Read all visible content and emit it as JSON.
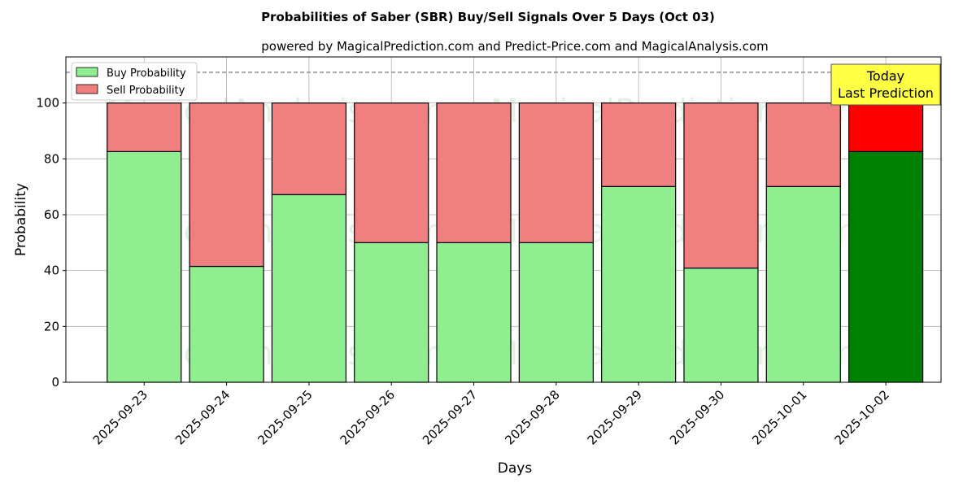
{
  "chart_data": {
    "type": "bar",
    "stacked": true,
    "title": "Probabilities of Saber (SBR) Buy/Sell Signals Over 5 Days (Oct 03)",
    "subtitle": "powered by MagicalPrediction.com and Predict-Price.com and MagicalAnalysis.com",
    "xlabel": "Days",
    "ylabel": "Probability",
    "ylim": [
      0,
      116.5
    ],
    "yticks": [
      0,
      20,
      40,
      60,
      80,
      100
    ],
    "categories": [
      "2025-09-23",
      "2025-09-24",
      "2025-09-25",
      "2025-09-26",
      "2025-09-27",
      "2025-09-28",
      "2025-09-29",
      "2025-09-30",
      "2025-10-01",
      "2025-10-02"
    ],
    "series": [
      {
        "name": "Buy Probability",
        "values": [
          82.6,
          41.5,
          67.2,
          50,
          50,
          50,
          70.1,
          40.9,
          70.1,
          82.6
        ],
        "color": "#90ee90",
        "highlight_color": "#008000"
      },
      {
        "name": "Sell Probability",
        "values": [
          17.4,
          58.5,
          32.8,
          50,
          50,
          50,
          29.9,
          59.1,
          29.9,
          17.4
        ],
        "color": "#f08080",
        "highlight_color": "#ff0000"
      }
    ],
    "reference_line": 111,
    "legend": "top-left",
    "grid": true,
    "annotation": {
      "line1": "Today",
      "line2": "Last Prediction",
      "color": "#ffff44"
    },
    "watermarks": [
      "MagicalAnalysis.com",
      "MagicalPrediction.com"
    ]
  }
}
